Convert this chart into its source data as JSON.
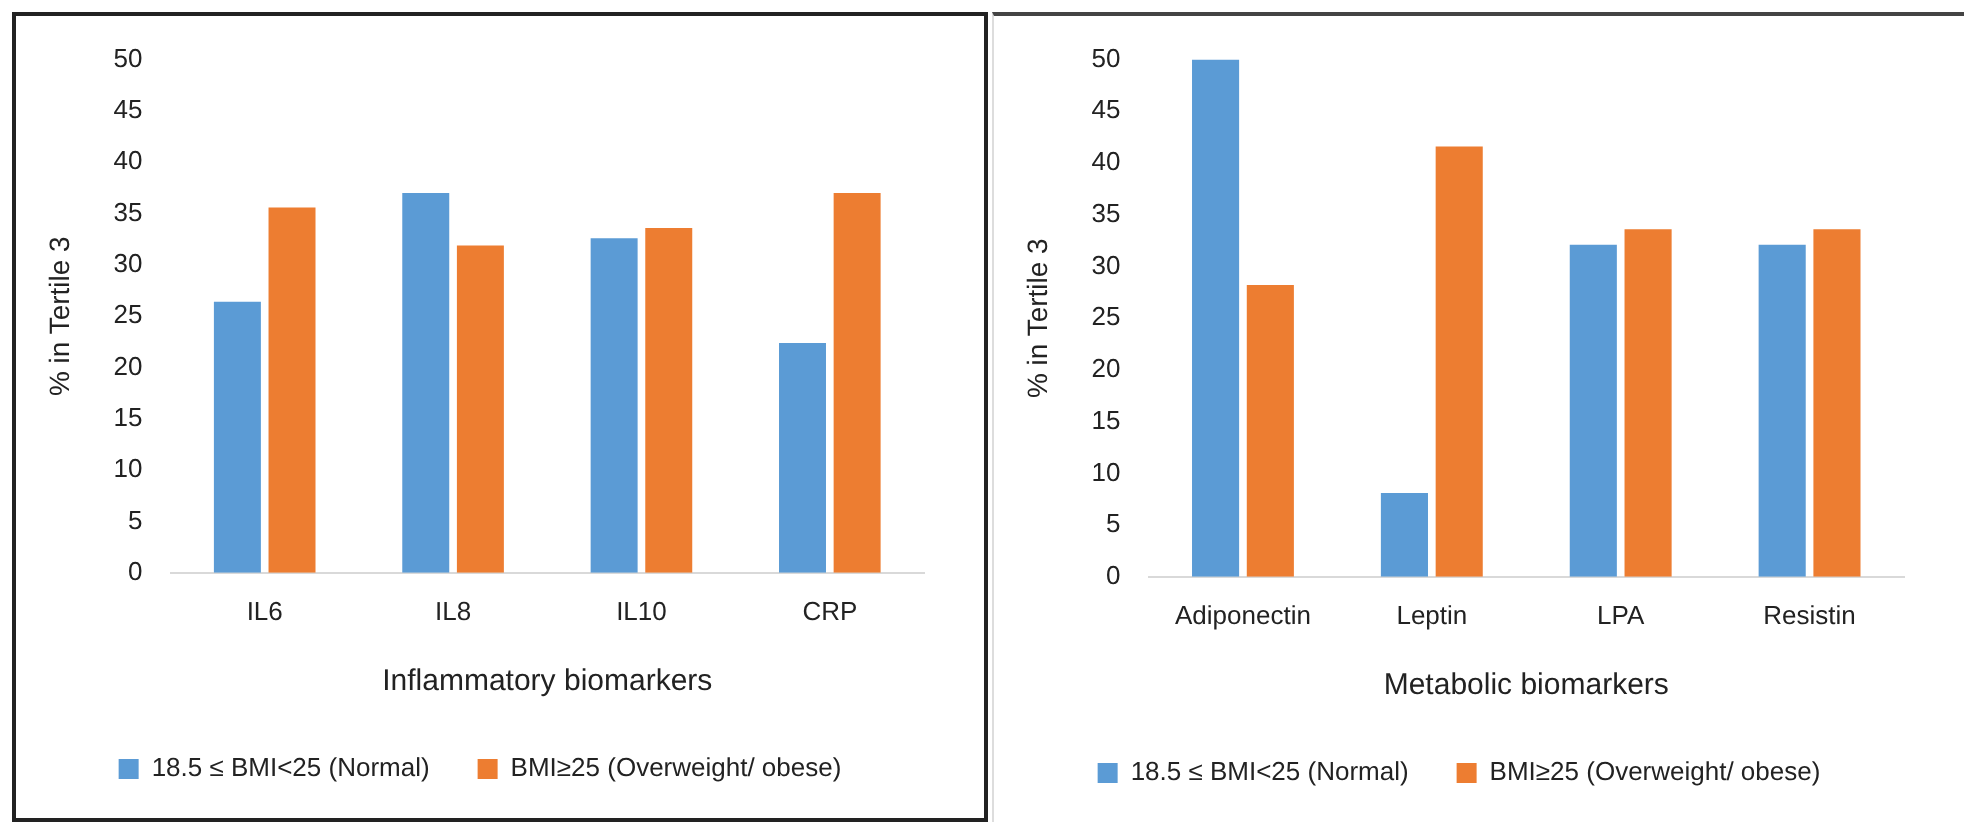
{
  "chart_data": [
    {
      "type": "bar",
      "xlabel": "Inflammatory biomarkers",
      "ylabel": "% in Tertile 3",
      "categories": [
        "IL6",
        "IL8",
        "IL10",
        "CRP"
      ],
      "ylim": [
        0,
        50
      ],
      "yticks": [
        0,
        5,
        10,
        15,
        20,
        25,
        30,
        35,
        40,
        45,
        50
      ],
      "grid": false,
      "legend": "bottom",
      "series": [
        {
          "name": "18.5 ≤ BMI<25 (Normal)",
          "color": "#5b9bd5",
          "values": [
            26.4,
            37.0,
            32.6,
            22.4
          ]
        },
        {
          "name": "BMI≥25 (Overweight/ obese)",
          "color": "#ed7d31",
          "values": [
            35.6,
            31.9,
            33.6,
            37.0
          ]
        }
      ]
    },
    {
      "type": "bar",
      "xlabel": "Metabolic biomarkers",
      "ylabel": "% in Tertile 3",
      "categories": [
        "Adiponectin",
        "Leptin",
        "LPA",
        "Resistin"
      ],
      "ylim": [
        0,
        50
      ],
      "yticks": [
        0,
        5,
        10,
        15,
        20,
        25,
        30,
        35,
        40,
        45,
        50
      ],
      "grid": false,
      "legend": "bottom",
      "series": [
        {
          "name": "18.5 ≤ BMI<25 (Normal)",
          "color": "#5b9bd5",
          "values": [
            50.0,
            8.1,
            32.1,
            32.1
          ]
        },
        {
          "name": "BMI≥25 (Overweight/ obese)",
          "color": "#ed7d31",
          "values": [
            28.2,
            41.6,
            33.6,
            33.6
          ]
        }
      ]
    }
  ]
}
